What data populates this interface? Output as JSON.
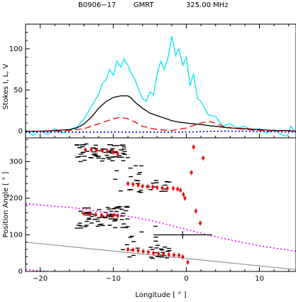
{
  "header": {
    "pulsar": "B0906−17",
    "telescope": "GMRT",
    "frequency": "325.00 MHz"
  },
  "chart_data": [
    {
      "type": "line",
      "ylabel": "Stokes I, L, V",
      "xlim": [
        -22,
        15
      ],
      "ylim": [
        -8,
        130
      ],
      "yticks": [
        0,
        50,
        100
      ],
      "series": [
        {
          "color": "#00e5ee",
          "style": "solid",
          "x": [
            -22,
            -21,
            -20,
            -19,
            -18,
            -17,
            -16,
            -15,
            -14,
            -13,
            -12,
            -11.5,
            -11,
            -10.5,
            -10,
            -9.5,
            -9,
            -8.5,
            -8,
            -7.5,
            -7,
            -6.5,
            -6,
            -5.5,
            -5,
            -4.5,
            -4,
            -3.5,
            -3,
            -2.5,
            -2,
            -1.8,
            -1.5,
            -1,
            -0.5,
            0,
            0.5,
            1,
            1.5,
            2,
            3,
            4,
            5,
            6,
            7,
            8,
            9,
            10,
            11,
            12,
            13,
            13.8,
            14.3,
            15
          ],
          "y": [
            2,
            -5,
            1,
            -4,
            3,
            -2,
            2,
            5,
            15,
            30,
            45,
            58,
            62,
            75,
            68,
            85,
            78,
            88,
            80,
            70,
            62,
            50,
            40,
            36,
            48,
            44,
            70,
            85,
            75,
            90,
            115,
            108,
            92,
            100,
            80,
            90,
            55,
            70,
            40,
            36,
            20,
            18,
            6,
            9,
            4,
            6,
            1,
            3,
            -2,
            2,
            -4,
            -6,
            6,
            -2
          ]
        },
        {
          "color": "#000000",
          "style": "solid",
          "x": [
            -22,
            -20,
            -18,
            -16,
            -15,
            -14,
            -13,
            -12,
            -11,
            -10,
            -9,
            -8,
            -7.5,
            -7,
            -6,
            -5,
            -4,
            -3,
            -2,
            -1,
            0,
            1,
            2,
            3,
            4,
            6,
            8,
            10,
            12,
            14,
            15
          ],
          "y": [
            0,
            0,
            1,
            2,
            4,
            9,
            17,
            28,
            36,
            41,
            43,
            43,
            40,
            35,
            28,
            22,
            19,
            16,
            13,
            11,
            10,
            9,
            8,
            7,
            6,
            4,
            3,
            2,
            1,
            1,
            0
          ]
        },
        {
          "color": "#ee0000",
          "style": "dashed",
          "x": [
            -22,
            -18,
            -16,
            -14,
            -12,
            -10,
            -9,
            -8,
            -7,
            -6,
            -5,
            -4,
            -2,
            0,
            2,
            3,
            4,
            5,
            7,
            10,
            15
          ],
          "y": [
            0,
            0,
            1,
            3,
            9,
            15,
            17,
            15,
            11,
            6,
            4,
            2,
            1,
            4,
            10,
            12,
            10,
            6,
            3,
            1,
            0
          ]
        },
        {
          "color": "#0000ee",
          "style": "dotted",
          "x": [
            -22,
            -5,
            0,
            4,
            8,
            15
          ],
          "y": [
            -1,
            -1,
            -1,
            0,
            0,
            -1
          ]
        }
      ]
    },
    {
      "type": "scatter",
      "xlabel": "Longitude [ ° ]",
      "ylabel": "Position Angle [ ° ]",
      "xlim": [
        -22,
        15
      ],
      "ylim": [
        0,
        365
      ],
      "xticks": [
        -20,
        -10,
        0,
        10
      ],
      "yticks": [
        0,
        100,
        200,
        300
      ],
      "pa_points": [
        {
          "x": -13.8,
          "y": 332
        },
        {
          "x": -13,
          "y": 333
        },
        {
          "x": -12.3,
          "y": 331
        },
        {
          "x": -11.5,
          "y": 330
        },
        {
          "x": -10.8,
          "y": 328
        },
        {
          "x": -10,
          "y": 326
        },
        {
          "x": -9.4,
          "y": 322
        },
        {
          "x": -8,
          "y": 240
        },
        {
          "x": -7.3,
          "y": 238
        },
        {
          "x": -6.6,
          "y": 236
        },
        {
          "x": -6,
          "y": 233
        },
        {
          "x": -5.3,
          "y": 232
        },
        {
          "x": -4.6,
          "y": 231
        },
        {
          "x": -4,
          "y": 229
        },
        {
          "x": -3.3,
          "y": 228
        },
        {
          "x": -2.6,
          "y": 227
        },
        {
          "x": -1.8,
          "y": 227
        },
        {
          "x": -1.2,
          "y": 225
        },
        {
          "x": -0.8,
          "y": 222
        },
        {
          "x": -0.4,
          "y": 210
        },
        {
          "x": -0.2,
          "y": 200
        },
        {
          "x": -14,
          "y": 158
        },
        {
          "x": -13.2,
          "y": 157
        },
        {
          "x": -12.4,
          "y": 155
        },
        {
          "x": -11.6,
          "y": 154
        },
        {
          "x": -10.8,
          "y": 153
        },
        {
          "x": -10,
          "y": 153
        },
        {
          "x": -9.4,
          "y": 152
        },
        {
          "x": -8,
          "y": 60
        },
        {
          "x": -7.3,
          "y": 59
        },
        {
          "x": -6.6,
          "y": 57
        },
        {
          "x": -5.9,
          "y": 55
        },
        {
          "x": -5.2,
          "y": 53
        },
        {
          "x": -4.5,
          "y": 50
        },
        {
          "x": -3.8,
          "y": 48
        },
        {
          "x": -3.1,
          "y": 47
        },
        {
          "x": -2.4,
          "y": 46
        },
        {
          "x": -1.7,
          "y": 45
        },
        {
          "x": -1,
          "y": 44
        },
        {
          "x": -0.5,
          "y": 40
        },
        {
          "x": 0.2,
          "y": 25
        },
        {
          "x": 1,
          "y": 340
        },
        {
          "x": 2.3,
          "y": 310
        },
        {
          "x": 0.7,
          "y": 270
        },
        {
          "x": 1.3,
          "y": 165
        },
        {
          "x": 1.9,
          "y": 132
        }
      ],
      "pa_error": 7,
      "representative_error": {
        "x": -0.5,
        "y": 100,
        "xerr": 4,
        "yerr": 10
      },
      "single_pulse_clusters": [
        {
          "x": [
            -15,
            -8
          ],
          "y": [
            300,
            350
          ],
          "n": 70
        },
        {
          "x": [
            -15,
            -8
          ],
          "y": [
            118,
            178
          ],
          "n": 70
        },
        {
          "x": [
            -9,
            -2
          ],
          "y": [
            215,
            252
          ],
          "n": 22
        },
        {
          "x": [
            -9,
            -2
          ],
          "y": [
            35,
            75
          ],
          "n": 26
        },
        {
          "x": [
            -8,
            -4
          ],
          "y": [
            80,
            130
          ],
          "n": 7
        },
        {
          "x": [
            -10,
            -5
          ],
          "y": [
            250,
            290
          ],
          "n": 8
        }
      ],
      "rvm_curves": [
        {
          "color": "#ee00ee",
          "style": "dotted",
          "x": [
            -22,
            -15,
            -10,
            -5,
            0,
            5,
            10,
            15
          ],
          "y": [
            185,
            173,
            158,
            140,
            115,
            90,
            70,
            55
          ]
        },
        {
          "color": "#ee00ee",
          "style": "dotted",
          "x": [
            -22,
            -15,
            -10,
            -5,
            0,
            5,
            10,
            15
          ],
          "y": [
            5,
            -7,
            -22,
            -40,
            -65,
            -90,
            -110,
            -125
          ]
        },
        {
          "color": "#999999",
          "style": "solid",
          "x": [
            -22,
            15
          ],
          "y": [
            80,
            5
          ]
        }
      ]
    }
  ]
}
